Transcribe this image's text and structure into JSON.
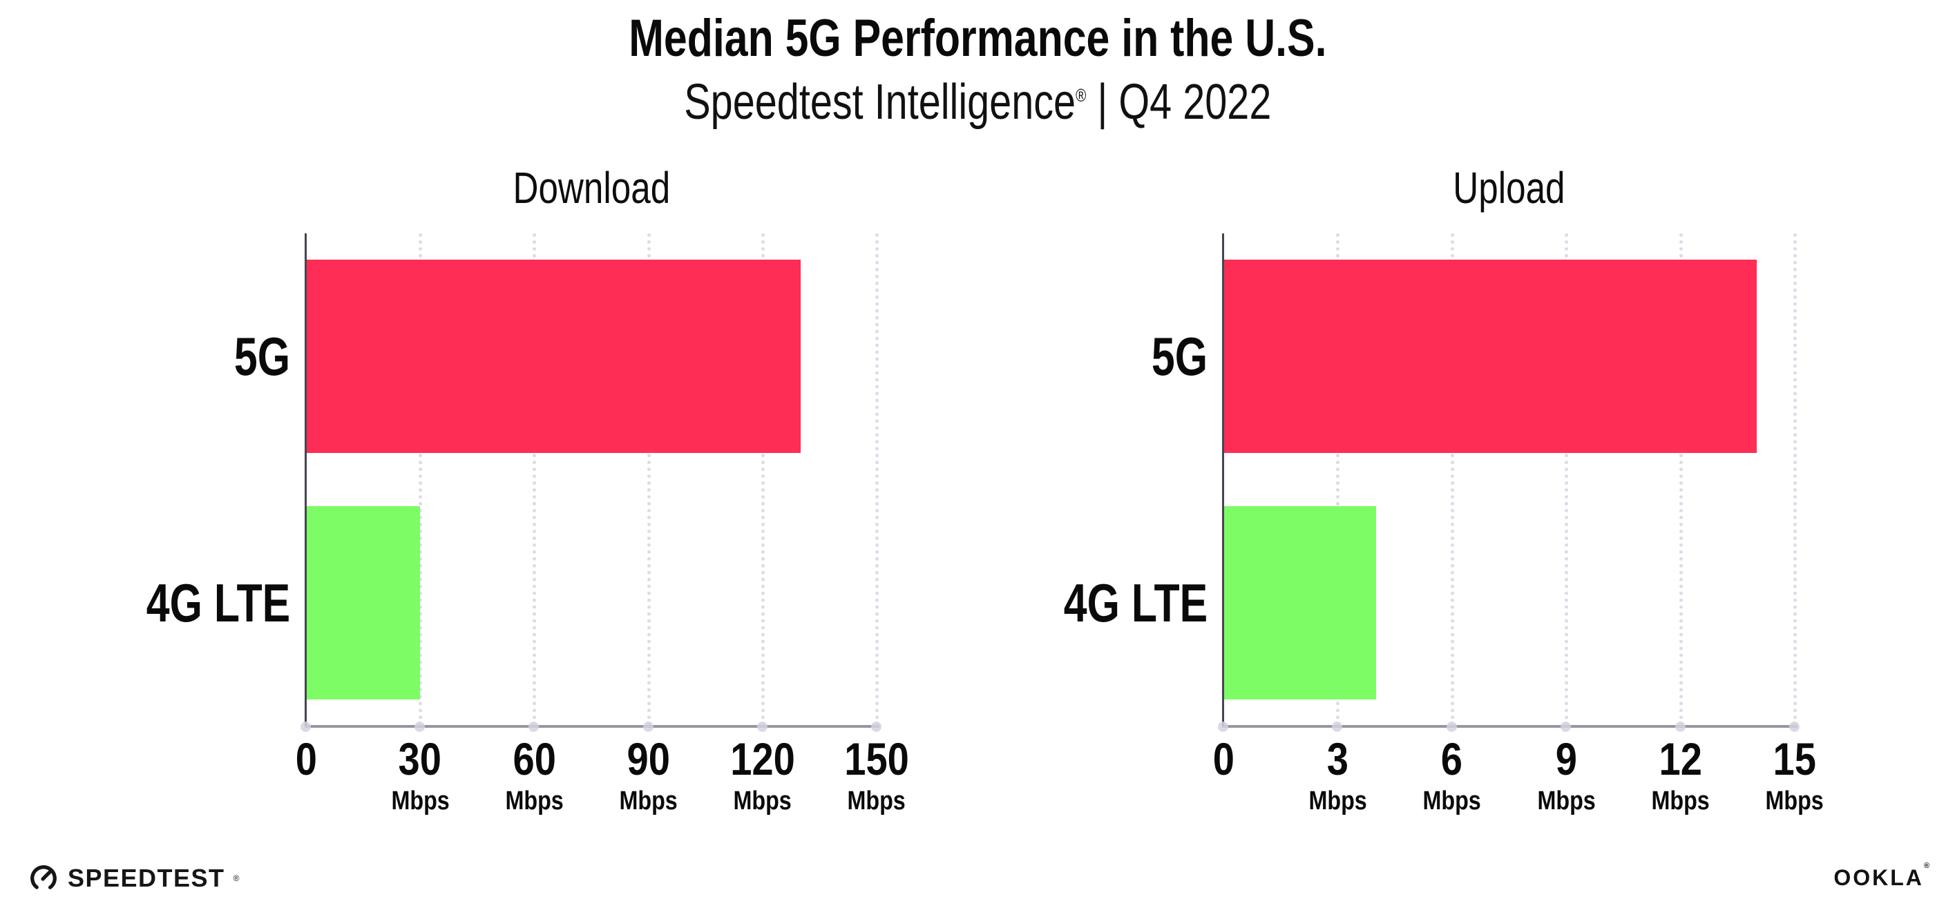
{
  "header": {
    "title": "Median 5G Performance in the U.S.",
    "subtitle_brand": "Speedtest Intelligence",
    "subtitle_reg": "®",
    "subtitle_rest": " | Q4 2022"
  },
  "chart_data": {
    "type": "bar",
    "orientation": "horizontal",
    "title": "Median 5G Performance in the U.S.",
    "subtitle": "Speedtest Intelligence® | Q4 2022",
    "categories": [
      "5G",
      "4G LTE"
    ],
    "bar_colors": [
      "#FE2D55",
      "#7EFC66"
    ],
    "grid": "vertical-dotted",
    "legend": "none",
    "axis_color": "#96969E",
    "grid_color": "#DCDCE8",
    "panels": [
      {
        "title": "Download",
        "unit": "Mbps",
        "xlim": [
          0,
          150
        ],
        "ticks": [
          0,
          30,
          60,
          90,
          120,
          150
        ],
        "values": [
          130,
          30
        ]
      },
      {
        "title": "Upload",
        "unit": "Mbps",
        "xlim": [
          0,
          15
        ],
        "ticks": [
          0,
          3,
          6,
          9,
          12,
          15
        ],
        "values": [
          14,
          4
        ]
      }
    ]
  },
  "footer": {
    "speedtest_label": "SPEEDTEST",
    "speedtest_mark": "®",
    "ookla_label": "OOKLA",
    "ookla_mark": "®"
  }
}
